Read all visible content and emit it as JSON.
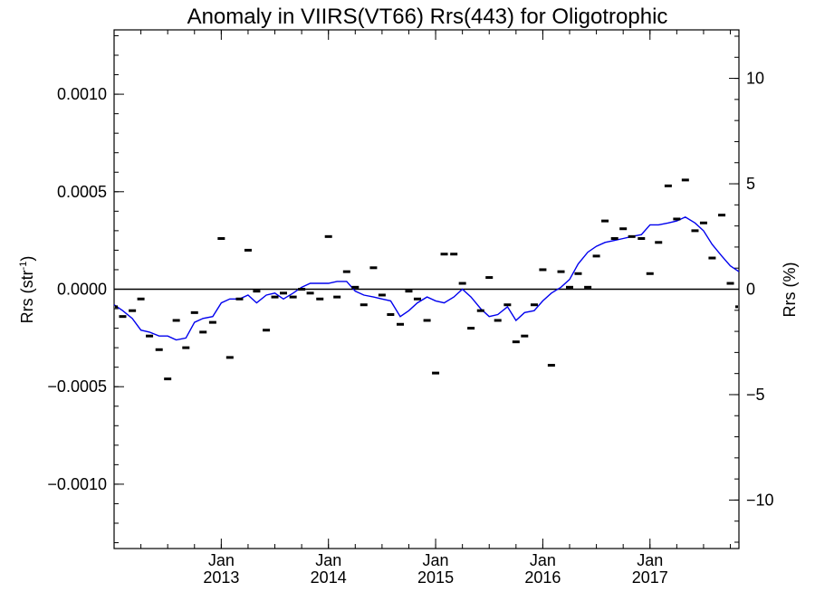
{
  "chart_data": {
    "type": "line",
    "title": "Anomaly in VIIRS(VT66) Rrs(443) for Oligotrophic",
    "ylabel": "Rrs (str",
    "ylabel_sup": "-1",
    "ylabel_close": ")",
    "y2label": "Rrs (%)",
    "xlim": [
      2012.0,
      2017.83
    ],
    "ylim": [
      -0.00133,
      0.00133
    ],
    "y2lim": [
      -12.3,
      12.3
    ],
    "yticks": [
      {
        "value": 0.001,
        "label": "0.0010"
      },
      {
        "value": 0.0005,
        "label": "0.0005"
      },
      {
        "value": 0.0,
        "label": "0.0000"
      },
      {
        "value": -0.0005,
        "label": "−0.0005"
      },
      {
        "value": -0.001,
        "label": "−0.0010"
      }
    ],
    "y2ticks": [
      {
        "value": 10,
        "label": "10"
      },
      {
        "value": 5,
        "label": "5"
      },
      {
        "value": 0,
        "label": "0"
      },
      {
        "value": -5,
        "label": "−5"
      },
      {
        "value": -10,
        "label": "−10"
      }
    ],
    "xticks": [
      {
        "value": 2013.0,
        "month": "Jan",
        "year": "2013"
      },
      {
        "value": 2014.0,
        "month": "Jan",
        "year": "2014"
      },
      {
        "value": 2015.0,
        "month": "Jan",
        "year": "2015"
      },
      {
        "value": 2016.0,
        "month": "Jan",
        "year": "2016"
      },
      {
        "value": 2017.0,
        "month": "Jan",
        "year": "2017"
      }
    ],
    "colors": {
      "trend": "#0000ee",
      "points": "#000000"
    },
    "series": [
      {
        "type": "scatter",
        "x": [
          2012.0,
          2012.08,
          2012.17,
          2012.25,
          2012.33,
          2012.42,
          2012.5,
          2012.58,
          2012.67,
          2012.75,
          2012.83,
          2012.92,
          2013.0,
          2013.08,
          2013.17,
          2013.25,
          2013.33,
          2013.42,
          2013.5,
          2013.58,
          2013.67,
          2013.75,
          2013.83,
          2013.92,
          2014.0,
          2014.08,
          2014.17,
          2014.25,
          2014.33,
          2014.42,
          2014.5,
          2014.58,
          2014.67,
          2014.75,
          2014.83,
          2014.92,
          2015.0,
          2015.08,
          2015.17,
          2015.25,
          2015.33,
          2015.42,
          2015.5,
          2015.58,
          2015.67,
          2015.75,
          2015.83,
          2015.92,
          2016.0,
          2016.08,
          2016.17,
          2016.25,
          2016.33,
          2016.42,
          2016.5,
          2016.58,
          2016.67,
          2016.75,
          2016.83,
          2016.92,
          2017.0,
          2017.08,
          2017.17,
          2017.25,
          2017.33,
          2017.42,
          2017.5,
          2017.58,
          2017.67,
          2017.75,
          2017.83
        ],
        "y": [
          -9e-05,
          -0.00014,
          -0.00011,
          -5e-05,
          -0.00024,
          -0.00031,
          -0.00046,
          -0.00016,
          -0.0003,
          -0.00012,
          -0.00022,
          -0.00017,
          0.00026,
          -0.00035,
          -5e-05,
          0.0002,
          -1e-05,
          -0.00021,
          -4e-05,
          -2e-05,
          -4e-05,
          0.0,
          -2e-05,
          -5e-05,
          0.00027,
          -4e-05,
          9e-05,
          1e-05,
          -8e-05,
          0.00011,
          -3e-05,
          -0.00013,
          -0.00018,
          -1e-05,
          -5e-05,
          -0.00016,
          -0.00043,
          0.00018,
          0.00018,
          3e-05,
          -0.0002,
          -0.00011,
          6e-05,
          -0.00016,
          -8e-05,
          -0.00027,
          -0.00024,
          -8e-05,
          0.0001,
          -0.00039,
          9e-05,
          1e-05,
          8e-05,
          1e-05,
          0.00017,
          0.00035,
          0.00026,
          0.00031,
          0.00027,
          0.00026,
          8e-05,
          0.00024,
          0.00053,
          0.00036,
          0.00056,
          0.0003,
          0.00034,
          0.00016,
          0.00038,
          3e-05,
          -9e-05
        ]
      },
      {
        "type": "line",
        "x": [
          2012.0,
          2012.08,
          2012.17,
          2012.25,
          2012.33,
          2012.42,
          2012.5,
          2012.58,
          2012.67,
          2012.75,
          2012.83,
          2012.92,
          2013.0,
          2013.08,
          2013.17,
          2013.25,
          2013.33,
          2013.42,
          2013.5,
          2013.58,
          2013.67,
          2013.75,
          2013.83,
          2013.92,
          2014.0,
          2014.08,
          2014.17,
          2014.25,
          2014.33,
          2014.42,
          2014.5,
          2014.58,
          2014.67,
          2014.75,
          2014.83,
          2014.92,
          2015.0,
          2015.08,
          2015.17,
          2015.25,
          2015.33,
          2015.42,
          2015.5,
          2015.58,
          2015.67,
          2015.75,
          2015.83,
          2015.92,
          2016.0,
          2016.08,
          2016.17,
          2016.25,
          2016.33,
          2016.42,
          2016.5,
          2016.58,
          2016.67,
          2016.75,
          2016.83,
          2016.92,
          2017.0,
          2017.08,
          2017.17,
          2017.25,
          2017.33,
          2017.42,
          2017.5,
          2017.58,
          2017.67,
          2017.75,
          2017.83
        ],
        "y": [
          -8e-05,
          -0.00011,
          -0.00015,
          -0.00021,
          -0.00022,
          -0.00024,
          -0.00024,
          -0.00026,
          -0.00025,
          -0.00017,
          -0.00015,
          -0.00014,
          -7e-05,
          -5e-05,
          -5e-05,
          -3e-05,
          -7e-05,
          -3e-05,
          -2e-05,
          -5e-05,
          -2e-05,
          1e-05,
          3e-05,
          3e-05,
          3e-05,
          4e-05,
          4e-05,
          -1e-05,
          -3e-05,
          -4e-05,
          -5e-05,
          -6e-05,
          -0.00014,
          -0.00011,
          -7e-05,
          -4e-05,
          -6e-05,
          -7e-05,
          -4e-05,
          0.0,
          -4e-05,
          -0.0001,
          -0.00014,
          -0.00013,
          -9e-05,
          -0.00016,
          -0.00012,
          -0.00011,
          -6e-05,
          -2e-05,
          1e-05,
          5e-05,
          0.00013,
          0.00019,
          0.00022,
          0.00024,
          0.00025,
          0.00026,
          0.00027,
          0.00028,
          0.00033,
          0.00033,
          0.00034,
          0.00035,
          0.00037,
          0.00034,
          0.0003,
          0.00023,
          0.00017,
          0.00012,
          9e-05
        ]
      }
    ]
  }
}
